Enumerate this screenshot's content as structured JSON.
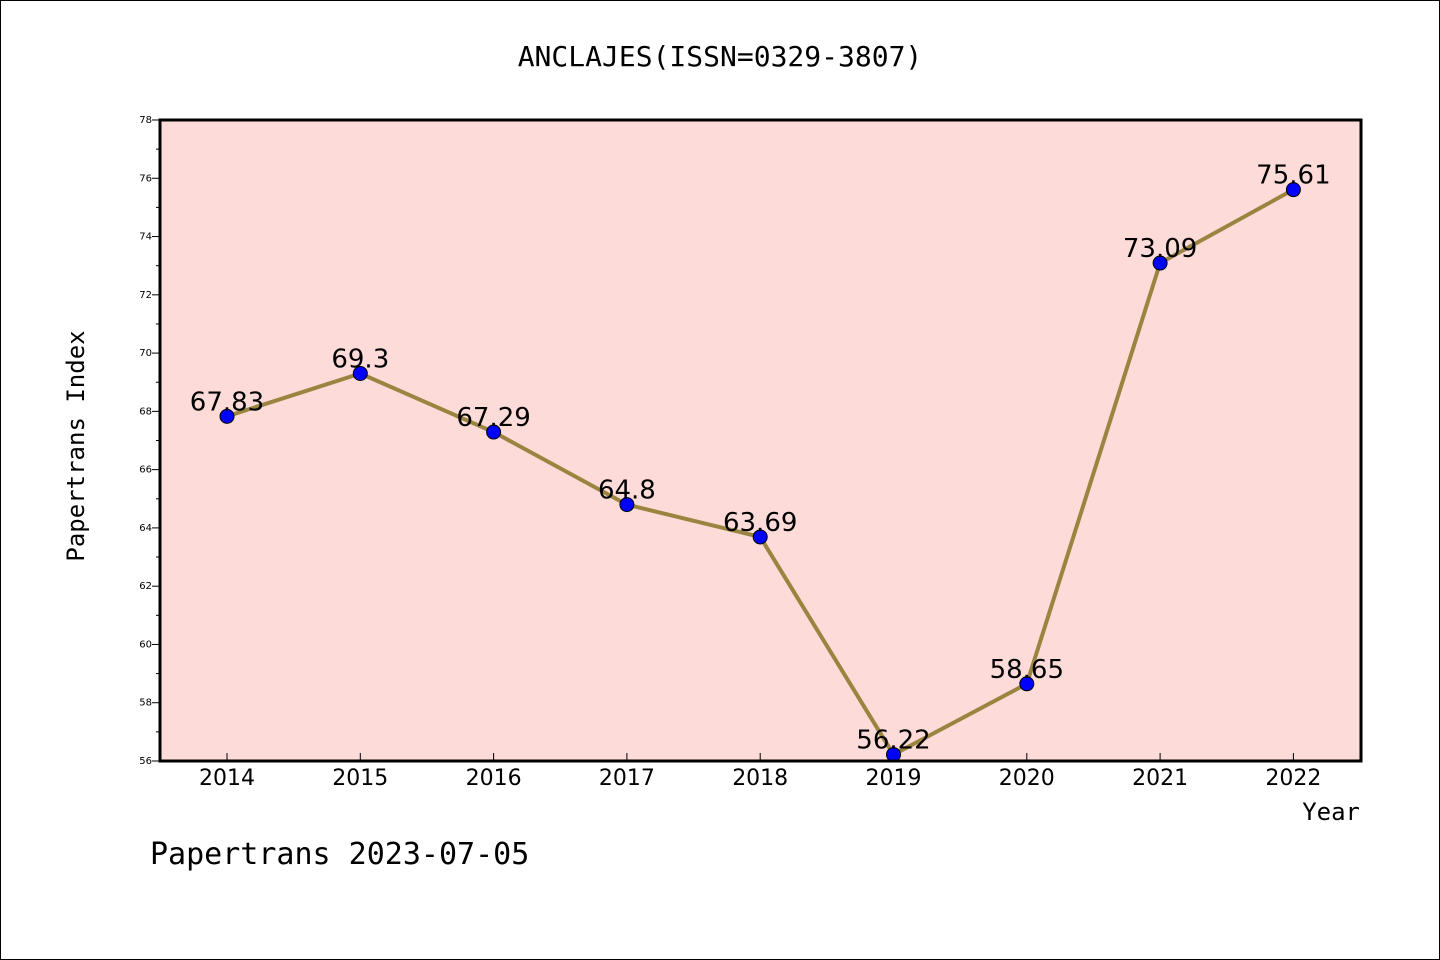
{
  "chart_data": {
    "type": "line",
    "title": "ANCLAJES(ISSN=0329-3807)",
    "xlabel": "Year",
    "ylabel": "Papertrans Index",
    "categories": [
      "2014",
      "2015",
      "2016",
      "2017",
      "2018",
      "2019",
      "2020",
      "2021",
      "2022"
    ],
    "values": [
      67.83,
      69.3,
      67.29,
      64.8,
      63.69,
      56.22,
      58.65,
      73.09,
      75.61
    ],
    "data_labels": [
      "67.83",
      "69.3",
      "67.29",
      "64.8",
      "63.69",
      "56.22",
      "58.65",
      "73.09",
      "75.61"
    ],
    "ylim": [
      56,
      78
    ],
    "yticks": [
      56,
      58,
      60,
      62,
      64,
      66,
      68,
      70,
      72,
      74,
      76,
      78
    ],
    "grid": false,
    "colors": {
      "plot_background": "#fddbd8",
      "line": "#9a8440",
      "marker": "#0000ff"
    }
  },
  "footer": "Papertrans 2023-07-05"
}
